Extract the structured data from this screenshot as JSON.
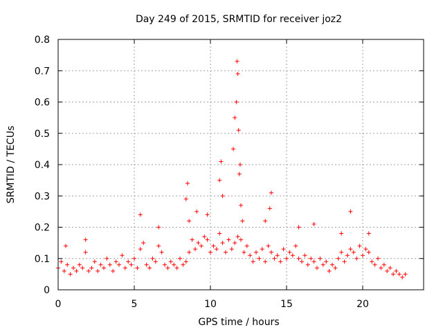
{
  "chart_data": {
    "type": "scatter",
    "title": "Day 249 of 2015, SRMTID for receiver joz2",
    "xlabel": "GPS time / hours",
    "ylabel": "SRMTID / TECUs",
    "xlim": [
      0,
      24
    ],
    "ylim": [
      0,
      0.8
    ],
    "xticks": [
      0,
      5,
      10,
      15,
      20
    ],
    "yticks": [
      0,
      0.1,
      0.2,
      0.3,
      0.4,
      0.5,
      0.6,
      0.7,
      0.8
    ],
    "xtick_labels": [
      "0",
      "5",
      "10",
      "15",
      "20"
    ],
    "ytick_labels": [
      "0",
      "0.1",
      "0.2",
      "0.3",
      "0.4",
      "0.5",
      "0.6",
      "0.7",
      "0.8"
    ],
    "grid": true,
    "marker": "+",
    "marker_color": "#ff0000",
    "series": [
      {
        "name": "SRMTID",
        "x": [
          0.0,
          0.2,
          0.4,
          0.6,
          0.8,
          1.0,
          1.2,
          1.4,
          1.6,
          1.8,
          2.0,
          2.2,
          2.4,
          2.6,
          2.8,
          3.0,
          3.2,
          3.4,
          3.6,
          3.8,
          4.0,
          4.2,
          4.4,
          4.6,
          4.8,
          5.0,
          5.2,
          5.4,
          5.6,
          5.8,
          6.0,
          6.2,
          6.4,
          6.6,
          6.8,
          7.0,
          7.2,
          7.4,
          7.6,
          7.8,
          8.0,
          8.2,
          8.4,
          8.6,
          8.8,
          9.0,
          9.2,
          9.4,
          9.6,
          9.8,
          10.0,
          10.2,
          10.4,
          10.6,
          10.8,
          11.0,
          11.2,
          11.4,
          11.6,
          11.8,
          12.0,
          12.2,
          12.4,
          12.6,
          12.8,
          13.0,
          13.2,
          13.4,
          13.6,
          13.8,
          14.0,
          14.2,
          14.4,
          14.6,
          14.8,
          15.0,
          15.2,
          15.4,
          15.6,
          15.8,
          16.0,
          16.2,
          16.4,
          16.6,
          16.8,
          17.0,
          17.2,
          17.4,
          17.6,
          17.8,
          18.0,
          18.2,
          18.4,
          18.6,
          18.8,
          19.0,
          19.2,
          19.4,
          19.6,
          19.8,
          20.0,
          20.2,
          20.4,
          20.6,
          20.8,
          21.0,
          21.2,
          21.4,
          21.6,
          21.8,
          22.0,
          22.2,
          22.4,
          22.6,
          22.8,
          0.5,
          1.8,
          5.4,
          6.6,
          8.4,
          8.5,
          8.6,
          9.1,
          9.8,
          10.6,
          10.7,
          10.8,
          11.5,
          11.6,
          11.7,
          11.75,
          11.8,
          11.85,
          11.9,
          11.95,
          12.0,
          12.1,
          13.6,
          13.9,
          14.0,
          15.8,
          16.8,
          18.6,
          19.2,
          20.4
        ],
        "y": [
          0.07,
          0.09,
          0.06,
          0.08,
          0.05,
          0.07,
          0.06,
          0.08,
          0.07,
          0.12,
          0.06,
          0.07,
          0.09,
          0.06,
          0.08,
          0.07,
          0.1,
          0.08,
          0.06,
          0.09,
          0.08,
          0.11,
          0.07,
          0.09,
          0.08,
          0.1,
          0.07,
          0.13,
          0.15,
          0.08,
          0.07,
          0.1,
          0.09,
          0.14,
          0.12,
          0.08,
          0.07,
          0.09,
          0.08,
          0.07,
          0.1,
          0.08,
          0.09,
          0.12,
          0.16,
          0.13,
          0.15,
          0.14,
          0.17,
          0.16,
          0.12,
          0.14,
          0.13,
          0.18,
          0.15,
          0.12,
          0.16,
          0.13,
          0.15,
          0.17,
          0.16,
          0.12,
          0.14,
          0.11,
          0.09,
          0.12,
          0.1,
          0.13,
          0.09,
          0.14,
          0.12,
          0.1,
          0.11,
          0.09,
          0.13,
          0.1,
          0.12,
          0.11,
          0.14,
          0.1,
          0.09,
          0.11,
          0.08,
          0.1,
          0.09,
          0.07,
          0.1,
          0.08,
          0.09,
          0.06,
          0.08,
          0.07,
          0.1,
          0.12,
          0.09,
          0.11,
          0.13,
          0.12,
          0.1,
          0.14,
          0.11,
          0.13,
          0.12,
          0.09,
          0.08,
          0.1,
          0.07,
          0.08,
          0.06,
          0.07,
          0.05,
          0.06,
          0.05,
          0.04,
          0.05,
          0.14,
          0.16,
          0.24,
          0.2,
          0.29,
          0.34,
          0.22,
          0.25,
          0.24,
          0.35,
          0.41,
          0.3,
          0.45,
          0.55,
          0.6,
          0.73,
          0.69,
          0.51,
          0.37,
          0.4,
          0.27,
          0.22,
          0.22,
          0.26,
          0.31,
          0.2,
          0.21,
          0.18,
          0.25,
          0.18
        ]
      }
    ]
  }
}
